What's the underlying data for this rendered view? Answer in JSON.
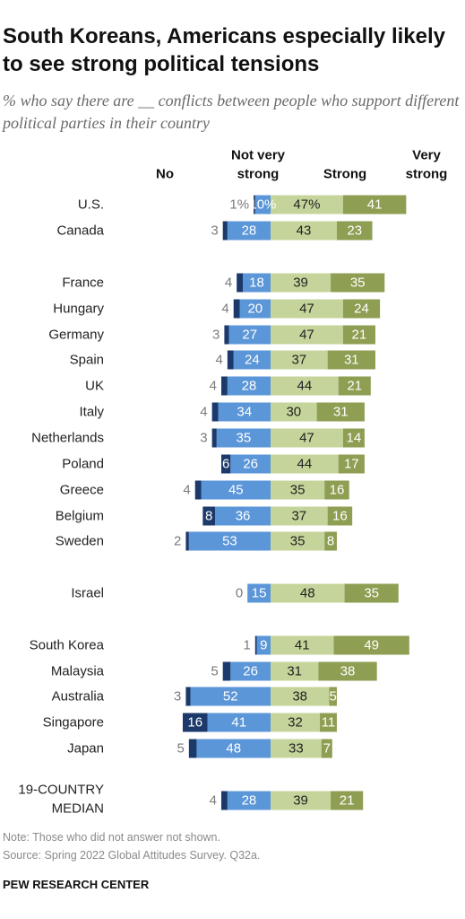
{
  "title": "South Koreans, Americans especially likely to see strong political tensions",
  "subtitle": "% who say there are __ conflicts between people who support different political parties in their country",
  "note": "Note: Those who did not answer not shown.",
  "source": "Source: Spring 2022 Global Attitudes Survey. Q32a.",
  "brand": "PEW RESEARCH CENTER",
  "colors": {
    "no": "#1b3a6b",
    "not_very_strong": "#5b96d8",
    "strong": "#c5d49a",
    "very_strong": "#8e9e52",
    "label_gray": "#7a7a7a"
  },
  "chart_data": {
    "type": "bar",
    "stacked": "diverging",
    "columns": [
      "No",
      "Not very strong",
      "Strong",
      "Very strong"
    ],
    "series": [
      {
        "name": "No",
        "color": "#1b3a6b"
      },
      {
        "name": "Not very strong",
        "color": "#5b96d8"
      },
      {
        "name": "Strong",
        "color": "#c5d49a"
      },
      {
        "name": "Very strong",
        "color": "#8e9e52"
      }
    ],
    "rows": [
      {
        "country": "U.S.",
        "values": [
          1,
          10,
          47,
          41
        ],
        "labels": [
          "1%",
          "10%",
          "47%",
          "41"
        ]
      },
      {
        "country": "Canada",
        "values": [
          3,
          28,
          43,
          23
        ],
        "labels": [
          "3",
          "28",
          "43",
          "23"
        ]
      },
      {
        "country": "France",
        "values": [
          4,
          18,
          39,
          35
        ],
        "labels": [
          "4",
          "18",
          "39",
          "35"
        ]
      },
      {
        "country": "Hungary",
        "values": [
          4,
          20,
          47,
          24
        ],
        "labels": [
          "4",
          "20",
          "47",
          "24"
        ]
      },
      {
        "country": "Germany",
        "values": [
          3,
          27,
          47,
          21
        ],
        "labels": [
          "3",
          "27",
          "47",
          "21"
        ]
      },
      {
        "country": "Spain",
        "values": [
          4,
          24,
          37,
          31
        ],
        "labels": [
          "4",
          "24",
          "37",
          "31"
        ]
      },
      {
        "country": "UK",
        "values": [
          4,
          28,
          44,
          21
        ],
        "labels": [
          "4",
          "28",
          "44",
          "21"
        ]
      },
      {
        "country": "Italy",
        "values": [
          4,
          34,
          30,
          31
        ],
        "labels": [
          "4",
          "34",
          "30",
          "31"
        ]
      },
      {
        "country": "Netherlands",
        "values": [
          3,
          35,
          47,
          14
        ],
        "labels": [
          "3",
          "35",
          "47",
          "14"
        ]
      },
      {
        "country": "Poland",
        "values": [
          6,
          26,
          44,
          17
        ],
        "labels": [
          "6",
          "26",
          "44",
          "17"
        ]
      },
      {
        "country": "Greece",
        "values": [
          4,
          45,
          35,
          16
        ],
        "labels": [
          "4",
          "45",
          "35",
          "16"
        ]
      },
      {
        "country": "Belgium",
        "values": [
          8,
          36,
          37,
          16
        ],
        "labels": [
          "8",
          "36",
          "37",
          "16"
        ]
      },
      {
        "country": "Sweden",
        "values": [
          2,
          53,
          35,
          8
        ],
        "labels": [
          "2",
          "53",
          "35",
          "8"
        ]
      },
      {
        "country": "Israel",
        "values": [
          0,
          15,
          48,
          35
        ],
        "labels": [
          "0",
          "15",
          "48",
          "35"
        ]
      },
      {
        "country": "South Korea",
        "values": [
          1,
          9,
          41,
          49
        ],
        "labels": [
          "1",
          "9",
          "41",
          "49"
        ]
      },
      {
        "country": "Malaysia",
        "values": [
          5,
          26,
          31,
          38
        ],
        "labels": [
          "5",
          "26",
          "31",
          "38"
        ]
      },
      {
        "country": "Australia",
        "values": [
          3,
          52,
          38,
          5
        ],
        "labels": [
          "3",
          "52",
          "38",
          "5"
        ]
      },
      {
        "country": "Singapore",
        "values": [
          16,
          41,
          32,
          11
        ],
        "labels": [
          "16",
          "41",
          "32",
          "11"
        ]
      },
      {
        "country": "Japan",
        "values": [
          5,
          48,
          33,
          7
        ],
        "labels": [
          "5",
          "48",
          "33",
          "7"
        ]
      },
      {
        "country": "19-COUNTRY MEDIAN",
        "values": [
          4,
          28,
          39,
          21
        ],
        "labels": [
          "4",
          "28",
          "39",
          "21"
        ]
      }
    ]
  }
}
